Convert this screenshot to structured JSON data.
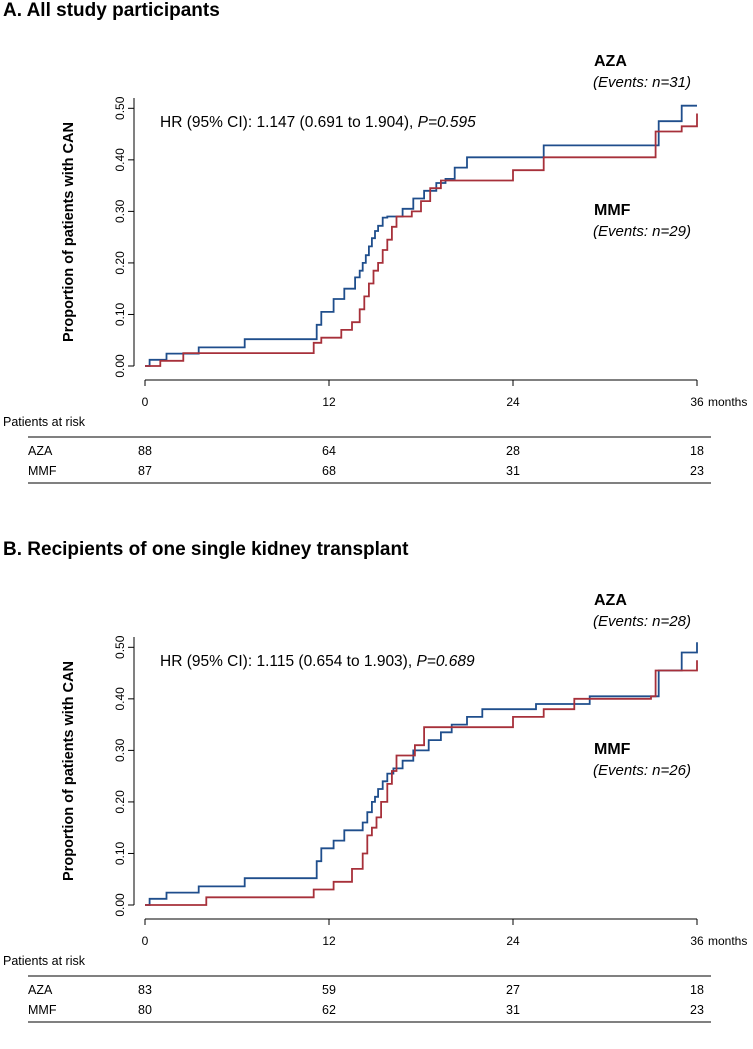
{
  "colors": {
    "AZA": "#1f4e8c",
    "MMF": "#a7303a",
    "axis": "#000000"
  },
  "chart_data": [
    {
      "type": "line",
      "step": true,
      "title": "A. All study participants",
      "ylabel": "Proportion of patients with CAN",
      "xlim": [
        0,
        36
      ],
      "ylim": [
        0,
        0.52
      ],
      "x_ticks": [
        0,
        12,
        24,
        36
      ],
      "x_tick_labels": [
        "0",
        "12",
        "24",
        "36"
      ],
      "x_unit": "months",
      "y_ticks": [
        0,
        0.1,
        0.2,
        0.3,
        0.4,
        0.5
      ],
      "y_tick_labels": [
        "0.00",
        "0.10",
        "0.20",
        "0.30",
        "0.40",
        "0.50"
      ],
      "annotation": {
        "prefix": "HR (95% CI): 1.147 (0.691 to 1.904), ",
        "p": "P=0.595"
      },
      "series": [
        {
          "name": "AZA",
          "events": "(Events: n=31)",
          "color": "#1f4e8c",
          "x": [
            0,
            0.3,
            1.4,
            3.5,
            6.5,
            11.0,
            11.2,
            11.5,
            12.3,
            13.0,
            13.7,
            14.0,
            14.2,
            14.4,
            14.6,
            14.8,
            15.0,
            15.2,
            15.5,
            15.8,
            16.2,
            16.8,
            17.5,
            18.2,
            19.0,
            19.6,
            20.2,
            21.0,
            22.5,
            26.0,
            33.0,
            33.5,
            35.0,
            36.0
          ],
          "y": [
            0,
            0.012,
            0.024,
            0.036,
            0.052,
            0.052,
            0.08,
            0.105,
            0.13,
            0.15,
            0.172,
            0.185,
            0.2,
            0.215,
            0.232,
            0.248,
            0.262,
            0.272,
            0.288,
            0.29,
            0.29,
            0.305,
            0.325,
            0.34,
            0.355,
            0.363,
            0.385,
            0.405,
            0.405,
            0.428,
            0.428,
            0.475,
            0.505,
            0.505
          ]
        },
        {
          "name": "MMF",
          "events": "(Events: n=29)",
          "color": "#a7303a",
          "x": [
            0,
            1.0,
            2.5,
            11.0,
            11.5,
            12.8,
            13.5,
            14.0,
            14.3,
            14.6,
            14.9,
            15.2,
            15.5,
            15.8,
            16.1,
            16.4,
            16.7,
            17.0,
            17.4,
            18.0,
            18.6,
            19.3,
            20.0,
            21.0,
            24.0,
            26.0,
            33.0,
            33.3,
            35.0,
            36.0
          ],
          "y": [
            0,
            0.01,
            0.025,
            0.045,
            0.055,
            0.07,
            0.085,
            0.11,
            0.135,
            0.16,
            0.185,
            0.2,
            0.225,
            0.245,
            0.27,
            0.29,
            0.29,
            0.29,
            0.3,
            0.32,
            0.345,
            0.36,
            0.36,
            0.36,
            0.38,
            0.405,
            0.405,
            0.455,
            0.465,
            0.49
          ]
        }
      ],
      "risk_table": {
        "title": "Patients at risk",
        "rows": [
          {
            "name": "AZA",
            "values": [
              "88",
              "64",
              "28",
              "18"
            ]
          },
          {
            "name": "MMF",
            "values": [
              "87",
              "68",
              "31",
              "23"
            ]
          }
        ]
      }
    },
    {
      "type": "line",
      "step": true,
      "title": "B. Recipients of one single kidney transplant",
      "ylabel": "Proportion of patients with CAN",
      "xlim": [
        0,
        36
      ],
      "ylim": [
        0,
        0.52
      ],
      "x_ticks": [
        0,
        12,
        24,
        36
      ],
      "x_tick_labels": [
        "0",
        "12",
        "24",
        "36"
      ],
      "x_unit": "months",
      "y_ticks": [
        0,
        0.1,
        0.2,
        0.3,
        0.4,
        0.5
      ],
      "y_tick_labels": [
        "0.00",
        "0.10",
        "0.20",
        "0.30",
        "0.40",
        "0.50"
      ],
      "annotation": {
        "prefix": "HR (95% CI): 1.115 (0.654 to 1.903), ",
        "p": "P=0.689"
      },
      "series": [
        {
          "name": "AZA",
          "events": "(Events: n=28)",
          "color": "#1f4e8c",
          "x": [
            0,
            0.3,
            1.4,
            3.5,
            6.5,
            11.0,
            11.2,
            11.5,
            12.3,
            13.0,
            14.2,
            14.5,
            14.8,
            15.0,
            15.2,
            15.5,
            15.8,
            16.2,
            16.8,
            17.5,
            18.5,
            19.3,
            20.0,
            21.0,
            22.0,
            25.5,
            29.0,
            33.0,
            33.5,
            35.0,
            36.0
          ],
          "y": [
            0,
            0.012,
            0.024,
            0.036,
            0.052,
            0.052,
            0.085,
            0.11,
            0.125,
            0.145,
            0.16,
            0.18,
            0.2,
            0.21,
            0.225,
            0.24,
            0.255,
            0.265,
            0.28,
            0.3,
            0.32,
            0.335,
            0.35,
            0.365,
            0.38,
            0.39,
            0.405,
            0.405,
            0.455,
            0.49,
            0.51
          ]
        },
        {
          "name": "MMF",
          "events": "(Events: n=26)",
          "color": "#a7303a",
          "x": [
            0,
            4.0,
            11.0,
            12.3,
            13.5,
            14.2,
            14.5,
            14.8,
            15.1,
            15.4,
            15.8,
            16.1,
            16.4,
            17.0,
            17.6,
            18.2,
            19.0,
            20.5,
            22.5,
            24.0,
            26.0,
            28.0,
            33.0,
            33.3,
            35.0,
            36.0
          ],
          "y": [
            0,
            0.015,
            0.03,
            0.045,
            0.07,
            0.1,
            0.135,
            0.15,
            0.17,
            0.2,
            0.235,
            0.26,
            0.29,
            0.29,
            0.31,
            0.345,
            0.345,
            0.345,
            0.345,
            0.365,
            0.38,
            0.4,
            0.405,
            0.455,
            0.455,
            0.475
          ]
        }
      ],
      "risk_table": {
        "title": "Patients at risk",
        "rows": [
          {
            "name": "AZA",
            "values": [
              "83",
              "59",
              "27",
              "18"
            ]
          },
          {
            "name": "MMF",
            "values": [
              "80",
              "62",
              "31",
              "23"
            ]
          }
        ]
      }
    }
  ]
}
